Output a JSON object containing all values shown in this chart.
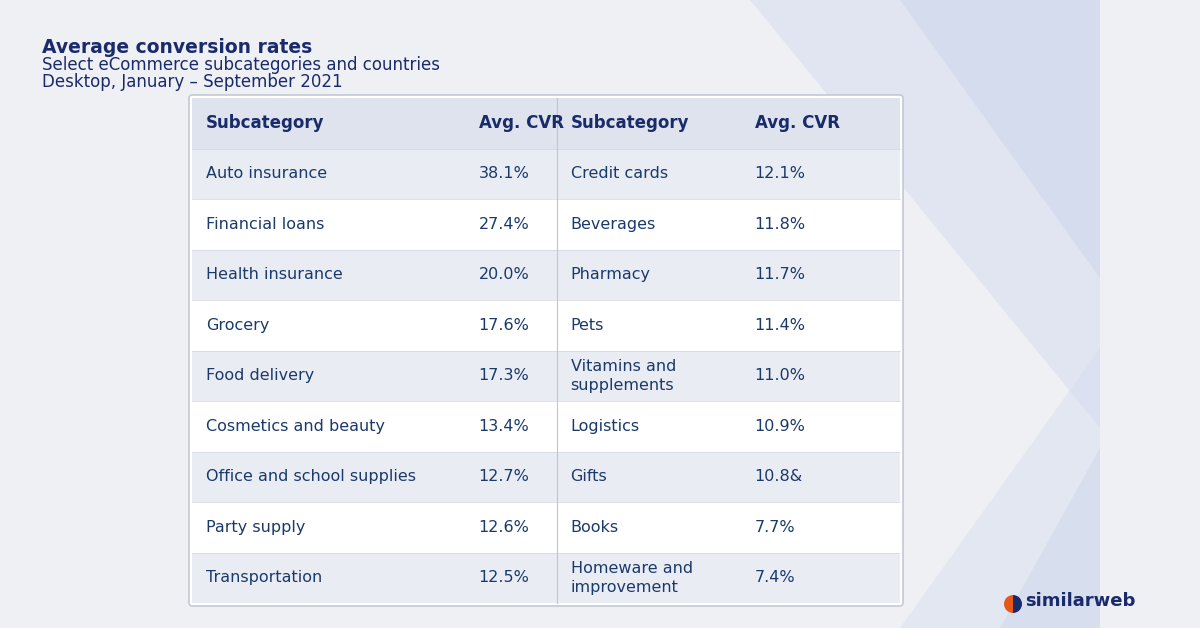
{
  "title_bold": "Average conversion rates",
  "title_line2": "Select eCommerce subcategories and countries",
  "title_line3": "Desktop, January – September 2021",
  "bg_color": "#eef0f4",
  "table_bg": "#ffffff",
  "header_bg": "#dfe3ee",
  "row_alt_bg": "#eaecf4",
  "row_white_bg": "#ffffff",
  "header_text_color": "#1a2b6b",
  "cell_text_color": "#1a3a6b",
  "title_bold_color": "#1a2b6b",
  "left_col1_header": "Subcategory",
  "left_col2_header": "Avg. CVR",
  "right_col1_header": "Subcategory",
  "right_col2_header": "Avg. CVR",
  "left_data": [
    [
      "Auto insurance",
      "38.1%"
    ],
    [
      "Financial loans",
      "27.4%"
    ],
    [
      "Health insurance",
      "20.0%"
    ],
    [
      "Grocery",
      "17.6%"
    ],
    [
      "Food delivery",
      "17.3%"
    ],
    [
      "Cosmetics and beauty",
      "13.4%"
    ],
    [
      "Office and school supplies",
      "12.7%"
    ],
    [
      "Party supply",
      "12.6%"
    ],
    [
      "Transportation",
      "12.5%"
    ]
  ],
  "right_data": [
    [
      "Credit cards",
      "12.1%"
    ],
    [
      "Beverages",
      "11.8%"
    ],
    [
      "Pharmacy",
      "11.7%"
    ],
    [
      "Pets",
      "11.4%"
    ],
    [
      "Vitamins and\nsupplements",
      "11.0%"
    ],
    [
      "Logistics",
      "10.9%"
    ],
    [
      "Gifts",
      "10.8&"
    ],
    [
      "Books",
      "7.7%"
    ],
    [
      "Homeware and\nimprovement",
      "7.4%"
    ]
  ],
  "similarweb_text": "similarweb",
  "similarweb_color": "#1a2b6b",
  "decoration_color_light": "#d8dff0",
  "decoration_color_mid": "#c8d2ea"
}
